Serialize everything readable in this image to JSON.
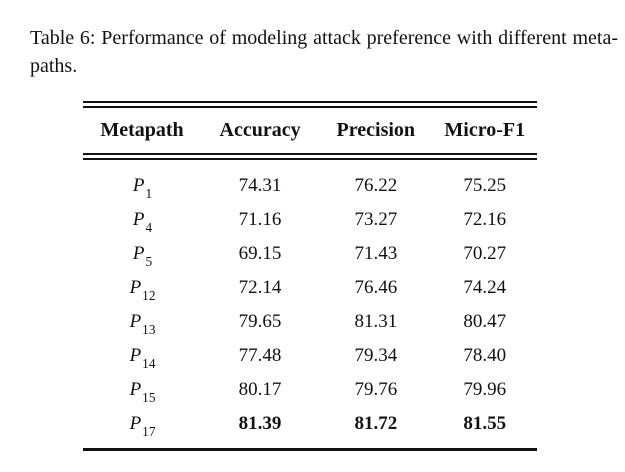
{
  "page": {
    "background_color": "#ffffff",
    "text_color": "#111111"
  },
  "caption": {
    "text": "Table 6: Performance of modeling attack preference with different meta-paths."
  },
  "table": {
    "headers": [
      "Metapath",
      "Accuracy",
      "Precision",
      "Micro-F1"
    ],
    "rows": [
      {
        "metapath_base": "P",
        "metapath_sub": "1",
        "values": [
          "74.31",
          "76.22",
          "75.25"
        ],
        "bold": false
      },
      {
        "metapath_base": "P",
        "metapath_sub": "4",
        "values": [
          "71.16",
          "73.27",
          "72.16"
        ],
        "bold": false
      },
      {
        "metapath_base": "P",
        "metapath_sub": "5",
        "values": [
          "69.15",
          "71.43",
          "70.27"
        ],
        "bold": false
      },
      {
        "metapath_base": "P",
        "metapath_sub": "12",
        "values": [
          "72.14",
          "76.46",
          "74.24"
        ],
        "bold": false
      },
      {
        "metapath_base": "P",
        "metapath_sub": "13",
        "values": [
          "79.65",
          "81.31",
          "80.47"
        ],
        "bold": false
      },
      {
        "metapath_base": "P",
        "metapath_sub": "14",
        "values": [
          "77.48",
          "79.34",
          "78.40"
        ],
        "bold": false
      },
      {
        "metapath_base": "P",
        "metapath_sub": "15",
        "values": [
          "80.17",
          "79.76",
          "79.96"
        ],
        "bold": false
      },
      {
        "metapath_base": "P",
        "metapath_sub": "17",
        "values": [
          "81.39",
          "81.72",
          "81.55"
        ],
        "bold": true
      }
    ]
  }
}
